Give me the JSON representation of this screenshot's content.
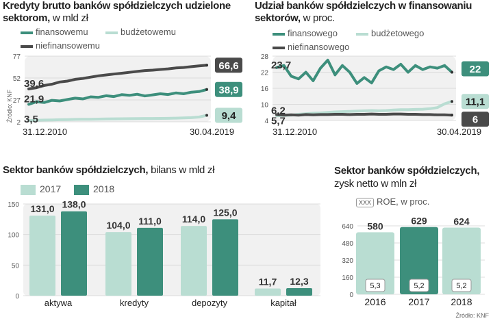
{
  "chart_data": [
    {
      "type": "line",
      "title": "Kredyty brutto banków spółdzielczych udzielone sektorom,",
      "title_suffix": "w mld zł",
      "x_start": "31.12.2010",
      "x_end": "30.04.2019",
      "yticks": [
        77,
        52,
        27,
        2
      ],
      "ylim": [
        2,
        77
      ],
      "source": "Źródło: KNF",
      "series": [
        {
          "name": "finansowemu",
          "color": "#3d8f7c",
          "start": 21.9,
          "end": 38.9,
          "values": [
            21.9,
            25.0,
            24.0,
            26.5,
            25.8,
            27.5,
            29.0,
            28.2,
            30.5,
            30.0,
            31.8,
            30.8,
            33.0,
            32.2,
            33.5,
            31.5,
            32.8,
            34.0,
            33.2,
            35.0,
            34.0,
            35.8,
            36.5,
            38.9
          ]
        },
        {
          "name": "budżetowemu",
          "color": "#b9ddd2",
          "start": 3.5,
          "end": 9.4,
          "values": [
            3.5,
            3.7,
            4.0,
            4.2,
            4.4,
            4.6,
            4.8,
            5.0,
            5.0,
            5.1,
            5.3,
            5.4,
            5.5,
            5.6,
            5.7,
            5.8,
            5.8,
            5.9,
            6.0,
            6.2,
            6.5,
            6.8,
            7.5,
            9.4
          ]
        },
        {
          "name": "niefinansowemu",
          "color": "#4a4a4a",
          "start": 39.6,
          "end": 66.6,
          "values": [
            39.6,
            41.0,
            43.5,
            45.0,
            47.5,
            48.5,
            50.5,
            51.5,
            53.0,
            54.5,
            55.5,
            56.5,
            57.5,
            58.5,
            59.5,
            60.5,
            61.0,
            61.8,
            62.5,
            63.5,
            64.0,
            65.0,
            65.8,
            66.6
          ]
        }
      ]
    },
    {
      "type": "line",
      "title": "Udział banków spółdzielczych w finansowaniu sektorów,",
      "title_suffix": "w proc.",
      "x_start": "31.12.2010",
      "x_end": "30.04.2019",
      "yticks": [
        28,
        22,
        16,
        10,
        4
      ],
      "ylim": [
        4,
        28
      ],
      "series": [
        {
          "name": "finansowego",
          "color": "#3d8f7c",
          "start": 23.7,
          "end": 22,
          "values": [
            23.7,
            24.5,
            20.5,
            19.5,
            22.0,
            18.8,
            23.5,
            26.5,
            21.0,
            24.5,
            22.0,
            17.8,
            20.0,
            18.0,
            22.5,
            24.0,
            23.0,
            25.0,
            22.0,
            24.5,
            23.0,
            24.0,
            23.5,
            24.5,
            22.0
          ]
        },
        {
          "name": "budżetowego",
          "color": "#b9ddd2",
          "start": 5.7,
          "end": 11.1,
          "values": [
            5.7,
            5.9,
            6.0,
            6.3,
            6.5,
            6.7,
            6.8,
            7.0,
            7.2,
            7.3,
            7.4,
            7.5,
            7.6,
            7.7,
            7.6,
            7.7,
            7.9,
            8.0,
            8.0,
            8.1,
            8.2,
            8.4,
            8.8,
            10.2,
            11.1
          ]
        },
        {
          "name": "niefinansowego",
          "color": "#4a4a4a",
          "start": 6.2,
          "end": 6,
          "values": [
            6.2,
            6.0,
            6.1,
            6.0,
            6.2,
            6.1,
            6.2,
            6.2,
            6.3,
            6.3,
            6.2,
            6.3,
            6.3,
            6.4,
            6.3,
            6.3,
            6.4,
            6.4,
            6.3,
            6.3,
            6.2,
            6.2,
            6.1,
            6.1,
            6.0
          ]
        }
      ]
    },
    {
      "type": "bar",
      "title": "Sektor banków spółdzielczych,",
      "title_suffix": "bilans w mld zł",
      "categories": [
        "aktywa",
        "kredyty",
        "depozyty",
        "kapitał"
      ],
      "yticks": [
        150,
        100,
        50,
        0
      ],
      "ylim": [
        0,
        150
      ],
      "series": [
        {
          "name": "2017",
          "color": "#b9ddd2",
          "values": [
            131.0,
            104.0,
            114.0,
            11.7
          ],
          "labels": [
            "131,0",
            "104,0",
            "114,0",
            "11,7"
          ]
        },
        {
          "name": "2018",
          "color": "#3d8f7c",
          "values": [
            138.0,
            111.0,
            125.0,
            12.3
          ],
          "labels": [
            "138,0",
            "111,0",
            "125,0",
            "12,3"
          ]
        }
      ]
    },
    {
      "type": "bar",
      "title": "Sektor banków spółdzielczych,",
      "title_line2": "zysk netto w mln zł",
      "legend_box": "XXX",
      "legend_text": "ROE, w proc.",
      "categories": [
        "2016",
        "2017",
        "2018"
      ],
      "yticks": [
        640,
        480,
        320,
        160,
        0
      ],
      "ylim": [
        0,
        640
      ],
      "values": [
        580,
        629,
        624
      ],
      "labels": [
        "580",
        "629",
        "624"
      ],
      "roe": [
        "5,3",
        "5,2",
        "5,2"
      ],
      "colors": [
        "#b9ddd2",
        "#3d8f7c",
        "#b9ddd2"
      ],
      "source": "Źródło: KNF"
    }
  ]
}
